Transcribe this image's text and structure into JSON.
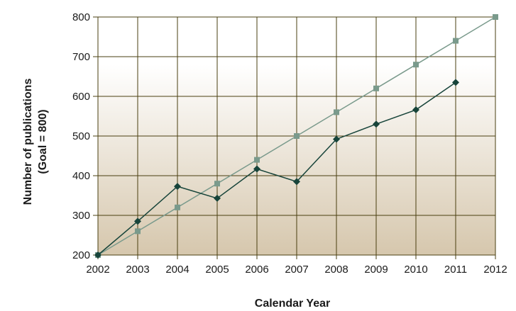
{
  "chart_data": {
    "type": "line",
    "title": "",
    "xlabel": "Calendar Year",
    "ylabel_lines": [
      "Number of publications",
      "(Goal = 800)"
    ],
    "x": [
      2002,
      2003,
      2004,
      2005,
      2006,
      2007,
      2008,
      2009,
      2010,
      2011,
      2012
    ],
    "xlim": [
      2002,
      2012
    ],
    "ylim": [
      200,
      800
    ],
    "yticks": [
      200,
      300,
      400,
      500,
      600,
      700,
      800
    ],
    "grid": true,
    "legend": "none",
    "series": [
      {
        "marker": "diamond",
        "color": "#17443a",
        "x": [
          2002,
          2003,
          2004,
          2005,
          2006,
          2007,
          2008,
          2009,
          2010,
          2011
        ],
        "values": [
          200,
          285,
          373,
          343,
          417,
          385,
          492,
          530,
          566,
          635
        ]
      },
      {
        "marker": "square",
        "color": "#7a9a8c",
        "x": [
          2002,
          2003,
          2004,
          2005,
          2006,
          2007,
          2008,
          2009,
          2010,
          2011,
          2012
        ],
        "values": [
          200,
          260,
          320,
          380,
          440,
          500,
          560,
          620,
          680,
          740,
          800
        ]
      }
    ],
    "colors": {
      "grid": "#4a3f10",
      "background_top": "#ffffff",
      "background_bottom": "#d6c7ad"
    }
  }
}
